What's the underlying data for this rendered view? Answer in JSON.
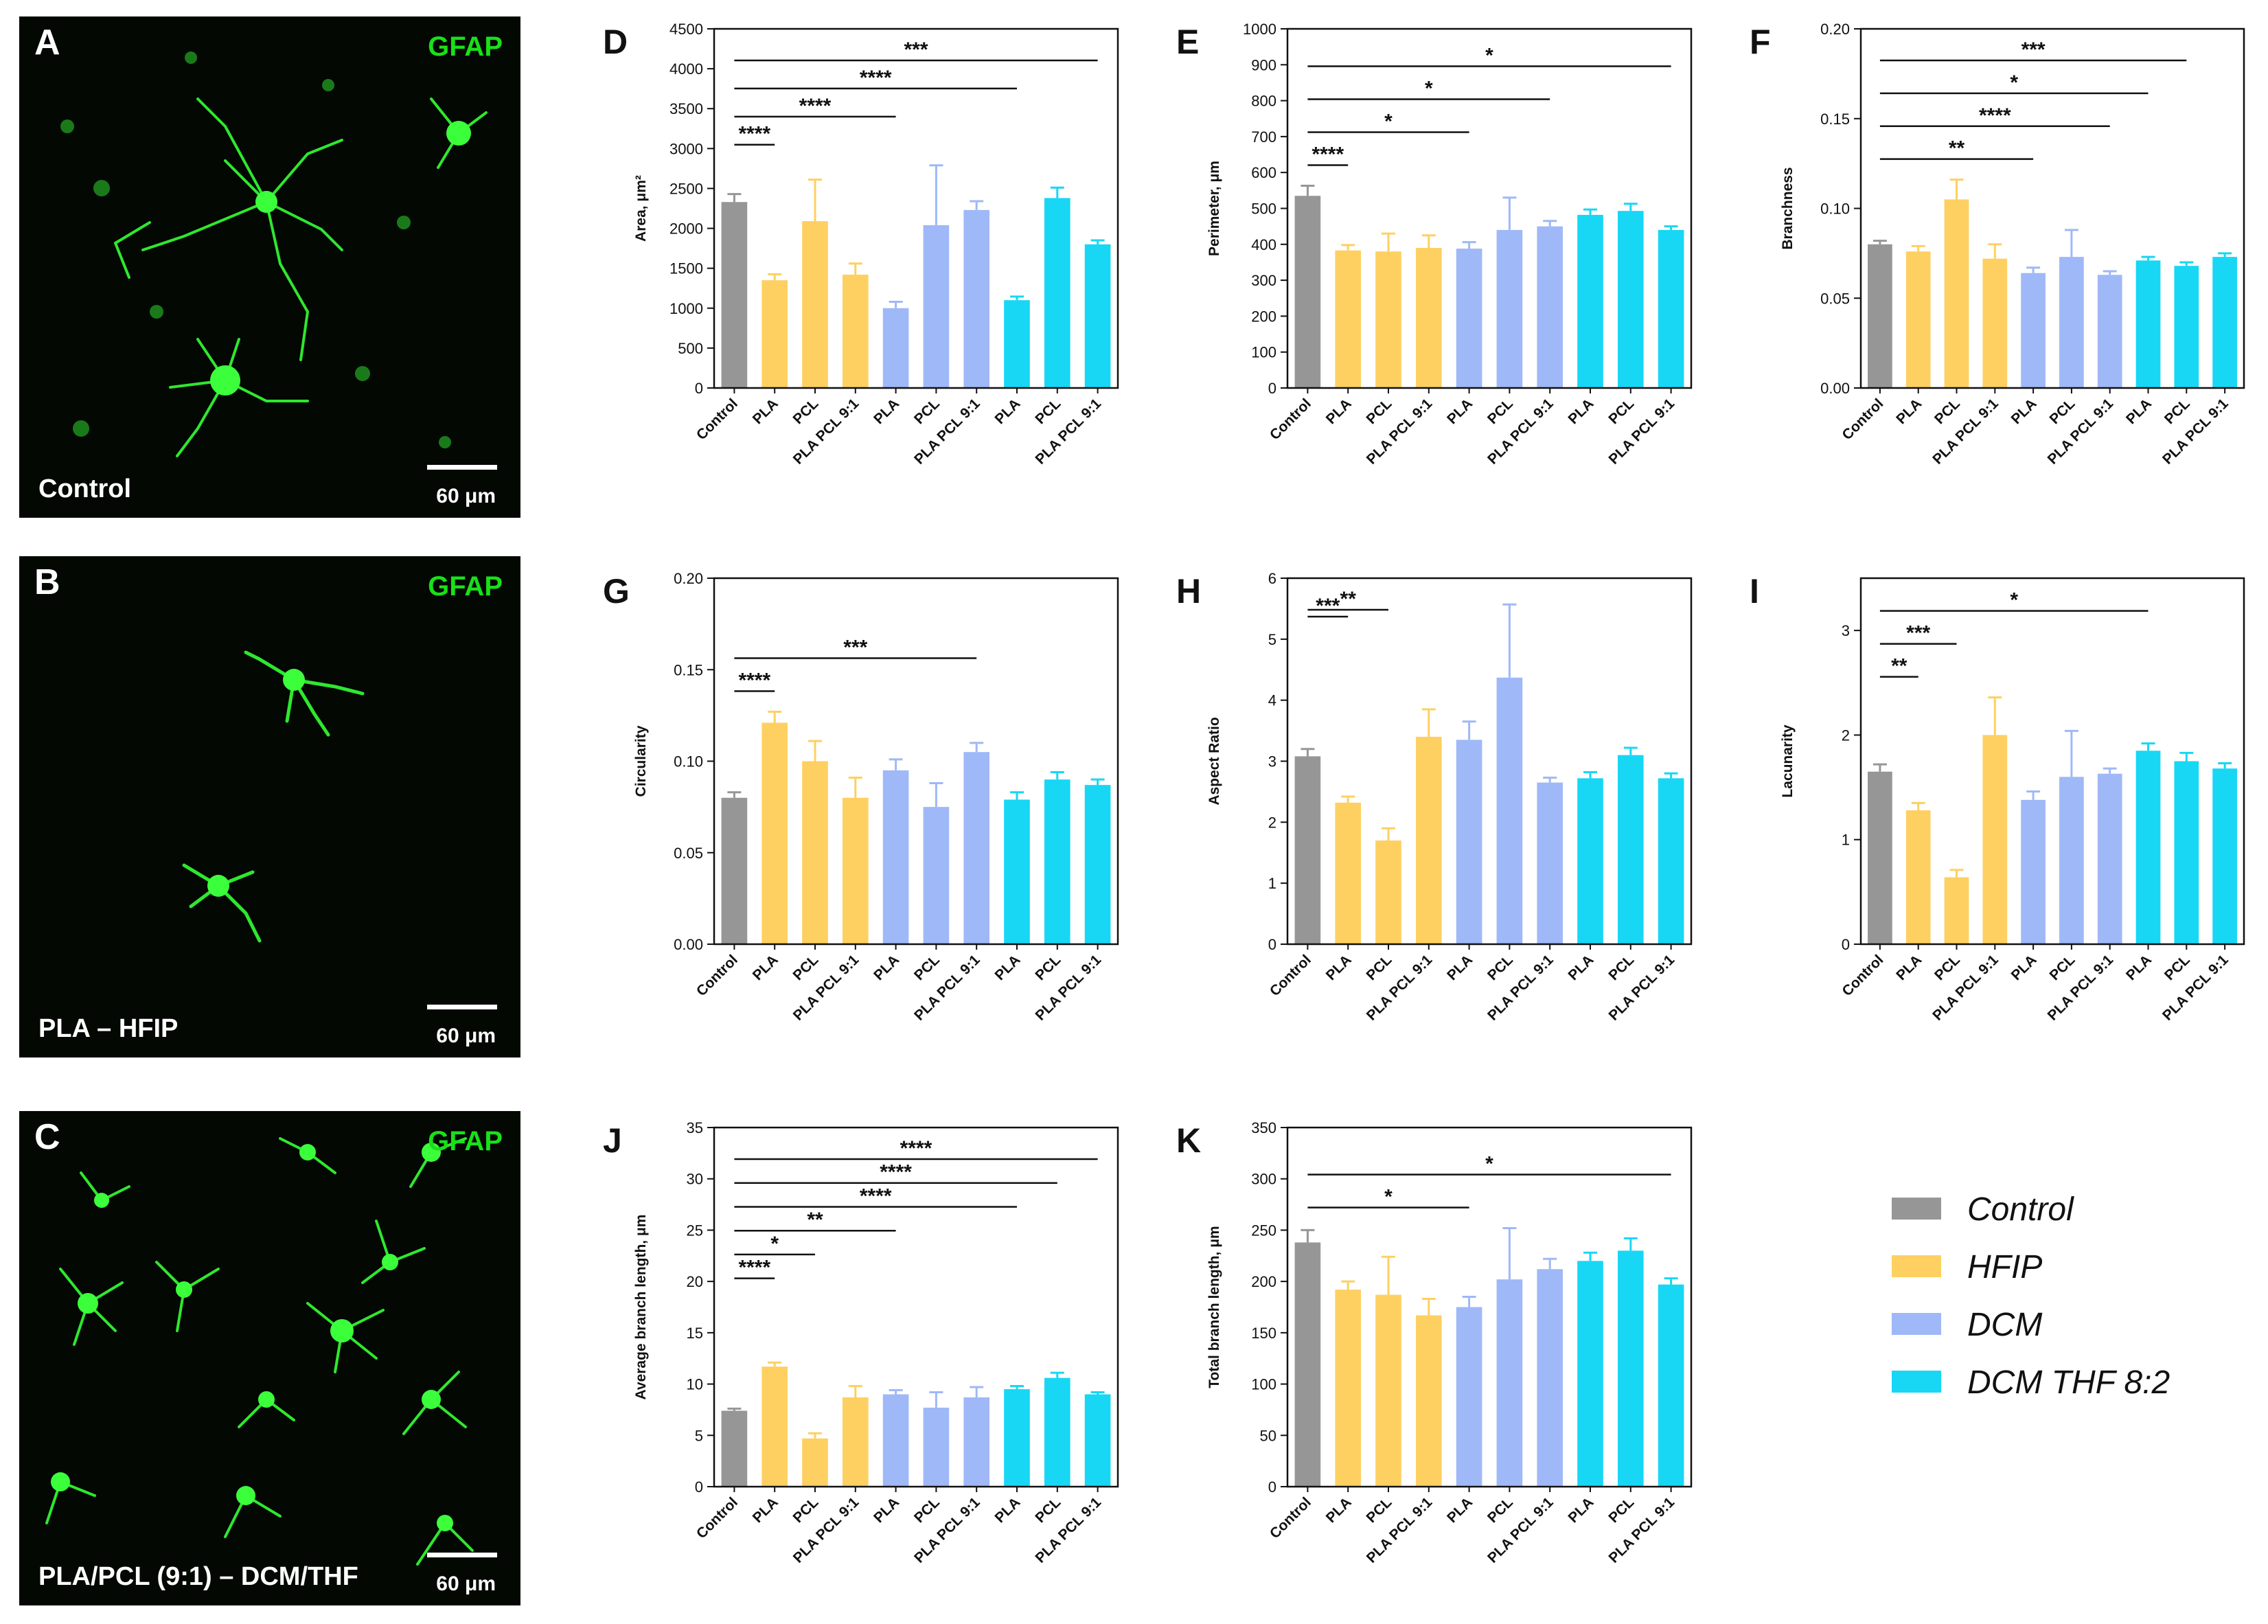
{
  "micrographs": [
    {
      "letter": "A",
      "stain": "GFAP",
      "sample": "Control",
      "scale": "60 μm"
    },
    {
      "letter": "B",
      "stain": "GFAP",
      "sample": "PLA – HFIP",
      "scale": "60 μm"
    },
    {
      "letter": "C",
      "stain": "GFAP",
      "sample": "PLA/PCL (9:1) – DCM/THF",
      "scale": "60 μm"
    }
  ],
  "legend": [
    {
      "label": "Control",
      "color": "#969696"
    },
    {
      "label": "HFIP",
      "color": "#fdd061"
    },
    {
      "label": "DCM",
      "color": "#9fb8f7"
    },
    {
      "label": "DCM THF 8:2",
      "color": "#17d7f5"
    }
  ],
  "chart_data": [
    {
      "panel": "D",
      "type": "bar",
      "categories": [
        "Control",
        "PLA",
        "PCL",
        "PLA PCL 9:1",
        "PLA",
        "PCL",
        "PLA PCL 9:1",
        "PLA",
        "PCL",
        "PLA PCL 9:1"
      ],
      "groups": [
        0,
        1,
        1,
        1,
        2,
        2,
        2,
        3,
        3,
        3
      ],
      "values": [
        2330,
        1350,
        2090,
        1420,
        1000,
        2040,
        2230,
        1100,
        2380,
        1800
      ],
      "errors": [
        100,
        75,
        520,
        140,
        80,
        750,
        110,
        45,
        130,
        50
      ],
      "ylabel": "Area, μm²",
      "ylim": [
        0,
        4500
      ],
      "yticks": [
        0,
        500,
        1000,
        1500,
        2000,
        2500,
        3000,
        3500,
        4000,
        4500
      ],
      "significance": [
        {
          "from": 0,
          "to": 1,
          "label": "****"
        },
        {
          "from": 0,
          "to": 4,
          "label": "****"
        },
        {
          "from": 0,
          "to": 7,
          "label": "****"
        },
        {
          "from": 0,
          "to": 9,
          "label": "***"
        }
      ]
    },
    {
      "panel": "E",
      "type": "bar",
      "categories": [
        "Control",
        "PLA",
        "PCL",
        "PLA PCL 9:1",
        "PLA",
        "PCL",
        "PLA PCL 9:1",
        "PLA",
        "PCL",
        "PLA PCL 9:1"
      ],
      "groups": [
        0,
        1,
        1,
        1,
        2,
        2,
        2,
        3,
        3,
        3
      ],
      "values": [
        535,
        383,
        380,
        390,
        388,
        440,
        450,
        482,
        493,
        440
      ],
      "errors": [
        28,
        15,
        50,
        35,
        18,
        90,
        15,
        15,
        20,
        10
      ],
      "ylabel": "Perimeter, μm",
      "ylim": [
        0,
        1000
      ],
      "yticks": [
        0,
        100,
        200,
        300,
        400,
        500,
        600,
        700,
        800,
        900,
        1000
      ],
      "significance": [
        {
          "from": 0,
          "to": 1,
          "label": "****"
        },
        {
          "from": 0,
          "to": 4,
          "label": "*"
        },
        {
          "from": 0,
          "to": 6,
          "label": "*"
        },
        {
          "from": 0,
          "to": 9,
          "label": "*"
        }
      ]
    },
    {
      "panel": "F",
      "type": "bar",
      "categories": [
        "Control",
        "PLA",
        "PCL",
        "PLA PCL 9:1",
        "PLA",
        "PCL",
        "PLA PCL 9:1",
        "PLA",
        "PCL",
        "PLA PCL 9:1"
      ],
      "groups": [
        0,
        1,
        1,
        1,
        2,
        2,
        2,
        3,
        3,
        3
      ],
      "values": [
        0.08,
        0.076,
        0.105,
        0.072,
        0.064,
        0.073,
        0.063,
        0.071,
        0.068,
        0.073
      ],
      "errors": [
        0.002,
        0.003,
        0.011,
        0.008,
        0.003,
        0.015,
        0.002,
        0.002,
        0.002,
        0.002
      ],
      "ylabel": "Branchness",
      "ylim": [
        0,
        0.2
      ],
      "yticks": [
        0,
        0.05,
        0.1,
        0.15,
        0.2
      ],
      "ytick_labels": [
        "0.00",
        "0.05",
        "0.10",
        "0.15",
        "0.20"
      ],
      "significance": [
        {
          "from": 0,
          "to": 4,
          "label": "**"
        },
        {
          "from": 0,
          "to": 6,
          "label": "****"
        },
        {
          "from": 0,
          "to": 7,
          "label": "*"
        },
        {
          "from": 0,
          "to": 8,
          "label": "***"
        }
      ]
    },
    {
      "panel": "G",
      "type": "bar",
      "categories": [
        "Control",
        "PLA",
        "PCL",
        "PLA PCL 9:1",
        "PLA",
        "PCL",
        "PLA PCL 9:1",
        "PLA",
        "PCL",
        "PLA PCL 9:1"
      ],
      "groups": [
        0,
        1,
        1,
        1,
        2,
        2,
        2,
        3,
        3,
        3
      ],
      "values": [
        0.08,
        0.121,
        0.1,
        0.08,
        0.095,
        0.075,
        0.105,
        0.079,
        0.09,
        0.087
      ],
      "errors": [
        0.003,
        0.006,
        0.011,
        0.011,
        0.006,
        0.013,
        0.005,
        0.004,
        0.004,
        0.003
      ],
      "ylabel": "Circularity",
      "ylim": [
        0,
        0.2
      ],
      "yticks": [
        0,
        0.05,
        0.1,
        0.15,
        0.2
      ],
      "ytick_labels": [
        "0.00",
        "0.05",
        "0.10",
        "0.15",
        "0.20"
      ],
      "significance": [
        {
          "from": 0,
          "to": 1,
          "label": "****"
        },
        {
          "from": 0,
          "to": 6,
          "label": "***"
        }
      ]
    },
    {
      "panel": "H",
      "type": "bar",
      "categories": [
        "Control",
        "PLA",
        "PCL",
        "PLA PCL 9:1",
        "PLA",
        "PCL",
        "PLA PCL 9:1",
        "PLA",
        "PCL",
        "PLA PCL 9:1"
      ],
      "groups": [
        0,
        1,
        1,
        1,
        2,
        2,
        2,
        3,
        3,
        3
      ],
      "values": [
        3.08,
        2.32,
        1.7,
        3.4,
        3.35,
        4.37,
        2.65,
        2.72,
        3.1,
        2.72
      ],
      "errors": [
        0.12,
        0.1,
        0.2,
        0.45,
        0.3,
        1.2,
        0.08,
        0.1,
        0.12,
        0.08
      ],
      "ylabel": "Aspect Ratio",
      "ylim": [
        0,
        6
      ],
      "yticks": [
        0,
        1,
        2,
        3,
        4,
        5,
        6
      ],
      "significance": [
        {
          "from": 0,
          "to": 1,
          "label": "***"
        },
        {
          "from": 0,
          "to": 2,
          "label": "**"
        }
      ]
    },
    {
      "panel": "I",
      "type": "bar",
      "categories": [
        "Control",
        "PLA",
        "PCL",
        "PLA PCL 9:1",
        "PLA",
        "PCL",
        "PLA PCL 9:1",
        "PLA",
        "PCL",
        "PLA PCL 9:1"
      ],
      "groups": [
        0,
        1,
        1,
        1,
        2,
        2,
        2,
        3,
        3,
        3
      ],
      "values": [
        1.65,
        1.28,
        0.64,
        2.0,
        1.38,
        1.6,
        1.63,
        1.85,
        1.75,
        1.68
      ],
      "errors": [
        0.07,
        0.07,
        0.07,
        0.36,
        0.08,
        0.44,
        0.05,
        0.07,
        0.08,
        0.05
      ],
      "ylabel": "Lacunarity",
      "ylim": [
        0,
        3.5
      ],
      "yticks": [
        0,
        1,
        2,
        3
      ],
      "significance": [
        {
          "from": 0,
          "to": 1,
          "label": "**"
        },
        {
          "from": 0,
          "to": 2,
          "label": "***"
        },
        {
          "from": 0,
          "to": 7,
          "label": "*"
        }
      ]
    },
    {
      "panel": "J",
      "type": "bar",
      "categories": [
        "Control",
        "PLA",
        "PCL",
        "PLA PCL 9:1",
        "PLA",
        "PCL",
        "PLA PCL 9:1",
        "PLA",
        "PCL",
        "PLA PCL 9:1"
      ],
      "groups": [
        0,
        1,
        1,
        1,
        2,
        2,
        2,
        3,
        3,
        3
      ],
      "values": [
        7.4,
        11.7,
        4.7,
        8.7,
        9.0,
        7.7,
        8.7,
        9.5,
        10.6,
        9.0
      ],
      "errors": [
        0.2,
        0.4,
        0.5,
        1.1,
        0.4,
        1.5,
        1.0,
        0.3,
        0.5,
        0.2
      ],
      "ylabel": "Average branch length, μm",
      "ylim": [
        0,
        35
      ],
      "yticks": [
        0,
        5,
        10,
        15,
        20,
        25,
        30,
        35
      ],
      "significance": [
        {
          "from": 0,
          "to": 1,
          "label": "****"
        },
        {
          "from": 0,
          "to": 2,
          "label": "*"
        },
        {
          "from": 0,
          "to": 4,
          "label": "**"
        },
        {
          "from": 0,
          "to": 7,
          "label": "****"
        },
        {
          "from": 0,
          "to": 8,
          "label": "****"
        },
        {
          "from": 0,
          "to": 9,
          "label": "****"
        }
      ]
    },
    {
      "panel": "K",
      "type": "bar",
      "categories": [
        "Control",
        "PLA",
        "PCL",
        "PLA PCL 9:1",
        "PLA",
        "PCL",
        "PLA PCL 9:1",
        "PLA",
        "PCL",
        "PLA PCL 9:1"
      ],
      "groups": [
        0,
        1,
        1,
        1,
        2,
        2,
        2,
        3,
        3,
        3
      ],
      "values": [
        238,
        192,
        187,
        167,
        175,
        202,
        212,
        220,
        230,
        197
      ],
      "errors": [
        12,
        8,
        37,
        16,
        10,
        50,
        10,
        8,
        12,
        6
      ],
      "ylabel": "Total branch length, μm",
      "ylim": [
        0,
        350
      ],
      "yticks": [
        0,
        50,
        100,
        150,
        200,
        250,
        300,
        350
      ],
      "significance": [
        {
          "from": 0,
          "to": 4,
          "label": "*"
        },
        {
          "from": 0,
          "to": 9,
          "label": "*"
        }
      ]
    }
  ]
}
